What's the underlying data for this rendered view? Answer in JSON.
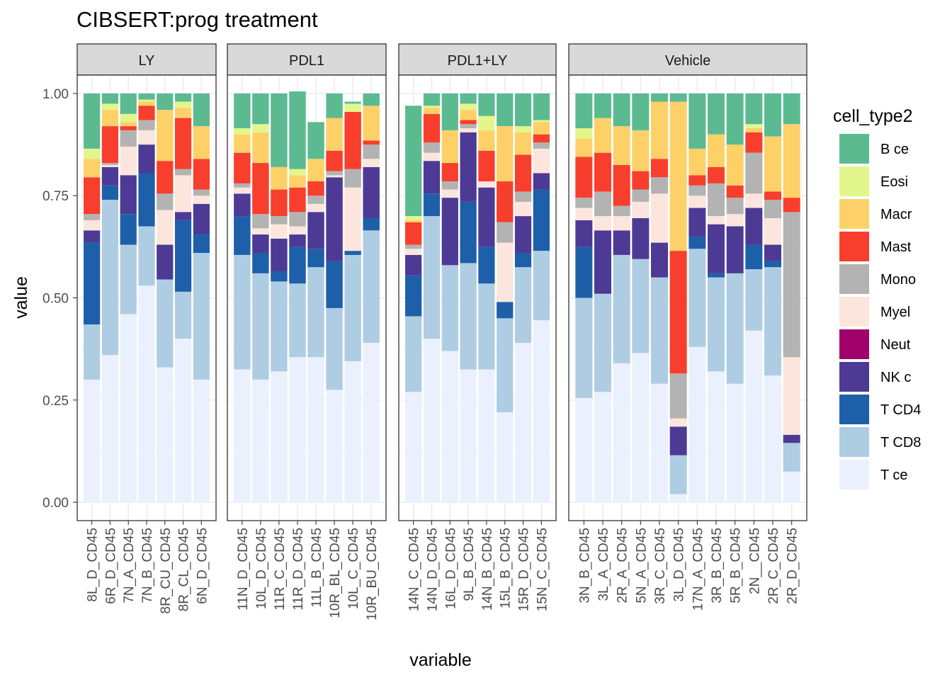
{
  "chart_data": {
    "type": "bar",
    "stacked": true,
    "faceted": true,
    "title": "CIBSERT:prog treatment",
    "xlabel": "variable",
    "ylabel": "value",
    "ylim": [
      -0.045,
      1.045
    ],
    "yticks": [
      0,
      0.25,
      0.5,
      0.75,
      1.0
    ],
    "ytick_labels": [
      "0.00",
      "0.25",
      "0.50",
      "0.75",
      "1.00"
    ],
    "legend": {
      "title": "cell_type2",
      "position": "right",
      "entries": [
        {
          "label": "B ce",
          "color": "#5cba91"
        },
        {
          "label": "Eosi",
          "color": "#e3f68b"
        },
        {
          "label": "Macr",
          "color": "#fdd168"
        },
        {
          "label": "Mast",
          "color": "#f83e2c"
        },
        {
          "label": "Mono",
          "color": "#b3b3b3"
        },
        {
          "label": "Myel",
          "color": "#fbe5dc"
        },
        {
          "label": "Neut",
          "color": "#a0006a"
        },
        {
          "label": "NK c",
          "color": "#4d3a94"
        },
        {
          "label": "T CD4",
          "color": "#1e5faa"
        },
        {
          "label": "T CD8",
          "color": "#afcde2"
        },
        {
          "label": "T ce",
          "color": "#eaf0fd"
        }
      ]
    },
    "stack_order_bottom_to_top": [
      "T ce",
      "T CD8",
      "T CD4",
      "NK c",
      "Neut",
      "Myel",
      "Mono",
      "Mast",
      "Macr",
      "Eosi",
      "B ce"
    ],
    "facets": [
      {
        "label": "LY",
        "bars": [
          {
            "name": "8L_D_CD45",
            "values": {
              "T ce": 0.3,
              "T CD8": 0.135,
              "T CD4": 0.2,
              "NK c": 0.03,
              "Neut": 0,
              "Myel": 0.025,
              "Mono": 0.015,
              "Mast": 0.09,
              "Macr": 0.045,
              "Eosi": 0.025,
              "B ce": 0.135
            }
          },
          {
            "name": "6R_D_CD45",
            "values": {
              "T ce": 0.36,
              "T CD8": 0.38,
              "T CD4": 0.035,
              "NK c": 0.045,
              "Neut": 0,
              "Myel": 0.005,
              "Mono": 0.005,
              "Mast": 0.09,
              "Macr": 0.04,
              "Eosi": 0.015,
              "B ce": 0.025
            }
          },
          {
            "name": "7N_A_CD45",
            "values": {
              "T ce": 0.46,
              "T CD8": 0.17,
              "T CD4": 0.075,
              "NK c": 0.095,
              "Neut": 0,
              "Myel": 0.07,
              "Mono": 0.04,
              "Mast": 0.01,
              "Macr": 0.01,
              "Eosi": 0.02,
              "B ce": 0.05
            }
          },
          {
            "name": "7N_B_CD45",
            "values": {
              "T ce": 0.53,
              "T CD8": 0.145,
              "T CD4": 0.13,
              "NK c": 0.07,
              "Neut": 0,
              "Myel": 0.035,
              "Mono": 0.025,
              "Mast": 0.035,
              "Macr": 0.01,
              "Eosi": 0.005,
              "B ce": 0.015
            }
          },
          {
            "name": "8R_CU_CD45",
            "values": {
              "T ce": 0.33,
              "T CD8": 0.215,
              "T CD4": 0,
              "NK c": 0.085,
              "Neut": 0,
              "Myel": 0.085,
              "Mono": 0.04,
              "Mast": 0.08,
              "Macr": 0.125,
              "Eosi": 0,
              "B ce": 0.04
            }
          },
          {
            "name": "8R_CL_CD45",
            "values": {
              "T ce": 0.4,
              "T CD8": 0.115,
              "T CD4": 0.175,
              "NK c": 0.02,
              "Neut": 0,
              "Myel": 0.09,
              "Mono": 0.015,
              "Mast": 0.125,
              "Macr": 0.025,
              "Eosi": 0.015,
              "B ce": 0.02
            }
          },
          {
            "name": "6N_D_CD45",
            "values": {
              "T ce": 0.3,
              "T CD8": 0.31,
              "T CD4": 0.045,
              "NK c": 0.075,
              "Neut": 0,
              "Myel": 0.02,
              "Mono": 0.015,
              "Mast": 0.075,
              "Macr": 0.08,
              "Eosi": 0,
              "B ce": 0.08
            }
          }
        ]
      },
      {
        "label": "PDL1",
        "bars": [
          {
            "name": "11N_D_CD45",
            "values": {
              "T ce": 0.325,
              "T CD8": 0.28,
              "T CD4": 0.095,
              "NK c": 0.055,
              "Neut": 0,
              "Myel": 0.015,
              "Mono": 0.01,
              "Mast": 0.075,
              "Macr": 0.045,
              "Eosi": 0.015,
              "B ce": 0.085
            }
          },
          {
            "name": "10L_D_CD45",
            "values": {
              "T ce": 0.3,
              "T CD8": 0.26,
              "T CD4": 0.05,
              "NK c": 0.045,
              "Neut": 0,
              "Myel": 0.015,
              "Mono": 0.035,
              "Mast": 0.125,
              "Macr": 0.075,
              "Eosi": 0.02,
              "B ce": 0.075
            }
          },
          {
            "name": "11R_C_CD45",
            "values": {
              "T ce": 0.32,
              "T CD8": 0.22,
              "T CD4": 0.025,
              "NK c": 0.08,
              "Neut": 0,
              "Myel": 0.035,
              "Mono": 0.02,
              "Mast": 0.065,
              "Macr": 0.055,
              "Eosi": 0,
              "B ce": 0.18
            }
          },
          {
            "name": "11R_D_CD45",
            "values": {
              "T ce": 0.355,
              "T CD8": 0.18,
              "T CD4": 0.09,
              "NK c": 0.03,
              "Neut": 0,
              "Myel": 0.02,
              "Mono": 0.035,
              "Mast": 0.06,
              "Macr": 0.03,
              "Eosi": 0.015,
              "B ce": 0.19
            }
          },
          {
            "name": "11L_B_CD45",
            "values": {
              "T ce": 0.355,
              "T CD8": 0.22,
              "T CD4": 0.045,
              "NK c": 0.09,
              "Neut": 0,
              "Myel": 0.02,
              "Mono": 0.02,
              "Mast": 0.035,
              "Macr": 0.055,
              "Eosi": 0,
              "B ce": 0.09
            }
          },
          {
            "name": "10R_BL_CD45",
            "values": {
              "T ce": 0.275,
              "T CD8": 0.2,
              "T CD4": 0.115,
              "NK c": 0.205,
              "Neut": 0,
              "Myel": 0.005,
              "Mono": 0.01,
              "Mast": 0.05,
              "Macr": 0.08,
              "Eosi": 0,
              "B ce": 0.06
            }
          },
          {
            "name": "10L_C_CD45",
            "values": {
              "T ce": 0.345,
              "T CD8": 0.26,
              "T CD4": 0.01,
              "NK c": 0,
              "Neut": 0,
              "Myel": 0.155,
              "Mono": 0.045,
              "Mast": 0.14,
              "Macr": 0,
              "Eosi": 0.02,
              "B ce": 0.005
            }
          },
          {
            "name": "10R_BU_CD45",
            "values": {
              "T ce": 0.39,
              "T CD8": 0.275,
              "T CD4": 0.03,
              "NK c": 0.125,
              "Neut": 0,
              "Myel": 0.02,
              "Mono": 0.035,
              "Mast": 0.01,
              "Macr": 0.085,
              "Eosi": 0,
              "B ce": 0.03
            }
          }
        ]
      },
      {
        "label": "PDL1+LY",
        "bars": [
          {
            "name": "14N_C_CD45",
            "values": {
              "T ce": 0.27,
              "T CD8": 0.185,
              "T CD4": 0.1,
              "NK c": 0.05,
              "Neut": 0,
              "Myel": 0.015,
              "Mono": 0.01,
              "Mast": 0.055,
              "Macr": 0.005,
              "Eosi": 0.01,
              "B ce": 0.27
            }
          },
          {
            "name": "14N_D_CD45",
            "values": {
              "T ce": 0.4,
              "T CD8": 0.3,
              "T CD4": 0.055,
              "NK c": 0.08,
              "Neut": 0,
              "Myel": 0.02,
              "Mono": 0.025,
              "Mast": 0.07,
              "Macr": 0.015,
              "Eosi": 0.005,
              "B ce": 0.03
            }
          },
          {
            "name": "16L_D_CD45",
            "values": {
              "T ce": 0.37,
              "T CD8": 0.21,
              "T CD4": 0,
              "NK c": 0.165,
              "Neut": 0,
              "Myel": 0.02,
              "Mono": 0.02,
              "Mast": 0.045,
              "Macr": 0.08,
              "Eosi": 0,
              "B ce": 0.09
            }
          },
          {
            "name": "9L_B_CD45",
            "values": {
              "T ce": 0.325,
              "T CD8": 0.26,
              "T CD4": 0.15,
              "NK c": 0.17,
              "Neut": 0,
              "Myel": 0.01,
              "Mono": 0.01,
              "Mast": 0.01,
              "Macr": 0.025,
              "Eosi": 0.015,
              "B ce": 0.025
            }
          },
          {
            "name": "14N_B_CD45",
            "values": {
              "T ce": 0.325,
              "T CD8": 0.21,
              "T CD4": 0.09,
              "NK c": 0.145,
              "Neut": 0,
              "Myel": 0.015,
              "Mono": 0,
              "Mast": 0.075,
              "Macr": 0.05,
              "Eosi": 0.035,
              "B ce": 0.055
            }
          },
          {
            "name": "15L_B_CD45",
            "values": {
              "T ce": 0.22,
              "T CD8": 0.23,
              "T CD4": 0.04,
              "NK c": 0,
              "Neut": 0,
              "Myel": 0.145,
              "Mono": 0.05,
              "Mast": 0.1,
              "Macr": 0.135,
              "Eosi": 0,
              "B ce": 0.08
            }
          },
          {
            "name": "15R_D_CD45",
            "values": {
              "T ce": 0.39,
              "T CD8": 0.185,
              "T CD4": 0.035,
              "NK c": 0.09,
              "Neut": 0,
              "Myel": 0.035,
              "Mono": 0.025,
              "Mast": 0.09,
              "Macr": 0.055,
              "Eosi": 0.015,
              "B ce": 0.08
            }
          },
          {
            "name": "15N_C_CD45",
            "values": {
              "T ce": 0.445,
              "T CD8": 0.17,
              "T CD4": 0.15,
              "NK c": 0.04,
              "Neut": 0,
              "Myel": 0.06,
              "Mono": 0.015,
              "Mast": 0.02,
              "Macr": 0.03,
              "Eosi": 0.005,
              "B ce": 0.065
            }
          }
        ]
      },
      {
        "label": "Vehicle",
        "bars": [
          {
            "name": "3N_B_CD45",
            "values": {
              "T ce": 0.255,
              "T CD8": 0.245,
              "T CD4": 0.125,
              "NK c": 0.065,
              "Neut": 0,
              "Myel": 0.03,
              "Mono": 0.025,
              "Mast": 0.1,
              "Macr": 0.045,
              "Eosi": 0.025,
              "B ce": 0.085
            }
          },
          {
            "name": "3L_A_CD45",
            "values": {
              "T ce": 0.27,
              "T CD8": 0.24,
              "T CD4": 0,
              "NK c": 0.155,
              "Neut": 0,
              "Myel": 0.035,
              "Mono": 0.06,
              "Mast": 0.095,
              "Macr": 0.085,
              "Eosi": 0,
              "B ce": 0.06
            }
          },
          {
            "name": "2R_A_CD45",
            "values": {
              "T ce": 0.34,
              "T CD8": 0.265,
              "T CD4": 0,
              "NK c": 0.06,
              "Neut": 0,
              "Myel": 0.035,
              "Mono": 0.025,
              "Mast": 0.1,
              "Macr": 0.095,
              "Eosi": 0,
              "B ce": 0.08
            }
          },
          {
            "name": "5N_A_CD45",
            "values": {
              "T ce": 0.365,
              "T CD8": 0.23,
              "T CD4": 0,
              "NK c": 0.1,
              "Neut": 0,
              "Myel": 0.04,
              "Mono": 0.03,
              "Mast": 0.045,
              "Macr": 0.1,
              "Eosi": 0,
              "B ce": 0.09
            }
          },
          {
            "name": "3R_C_CD45",
            "values": {
              "T ce": 0.29,
              "T CD8": 0.26,
              "T CD4": 0,
              "NK c": 0.085,
              "Neut": 0,
              "Myel": 0.12,
              "Mono": 0.04,
              "Mast": 0.045,
              "Macr": 0.14,
              "Eosi": 0,
              "B ce": 0.02
            }
          },
          {
            "name": "3L_D_CD45",
            "values": {
              "T ce": 0.02,
              "T CD8": 0.095,
              "T CD4": 0,
              "NK c": 0.07,
              "Neut": 0,
              "Myel": 0.02,
              "Mono": 0.11,
              "Mast": 0.3,
              "Macr": 0.365,
              "Eosi": 0,
              "B ce": 0.02
            }
          },
          {
            "name": "17N_A_CD45",
            "values": {
              "T ce": 0.38,
              "T CD8": 0.24,
              "T CD4": 0.03,
              "NK c": 0.07,
              "Neut": 0,
              "Myel": 0.03,
              "Mono": 0.025,
              "Mast": 0.025,
              "Macr": 0.065,
              "Eosi": 0,
              "B ce": 0.135
            }
          },
          {
            "name": "3R_B_CD45",
            "values": {
              "T ce": 0.32,
              "T CD8": 0.23,
              "T CD4": 0.01,
              "NK c": 0.12,
              "Neut": 0,
              "Myel": 0.02,
              "Mono": 0.08,
              "Mast": 0.04,
              "Macr": 0.08,
              "Eosi": 0,
              "B ce": 0.1
            }
          },
          {
            "name": "5R_B_CD45",
            "values": {
              "T ce": 0.29,
              "T CD8": 0.27,
              "T CD4": 0,
              "NK c": 0.115,
              "Neut": 0,
              "Myel": 0.03,
              "Mono": 0.04,
              "Mast": 0.03,
              "Macr": 0.1,
              "Eosi": 0,
              "B ce": 0.125
            }
          },
          {
            "name": "2N__CD45",
            "values": {
              "T ce": 0.42,
              "T CD8": 0.15,
              "T CD4": 0.06,
              "NK c": 0.09,
              "Neut": 0,
              "Myel": 0.035,
              "Mono": 0.1,
              "Mast": 0.05,
              "Macr": 0.01,
              "Eosi": 0.01,
              "B ce": 0.075
            }
          },
          {
            "name": "2R_C_CD45",
            "values": {
              "T ce": 0.31,
              "T CD8": 0.265,
              "T CD4": 0.015,
              "NK c": 0.04,
              "Neut": 0,
              "Myel": 0.065,
              "Mono": 0.045,
              "Mast": 0.02,
              "Macr": 0.135,
              "Eosi": 0,
              "B ce": 0.105
            }
          },
          {
            "name": "2R_D_CD45",
            "values": {
              "T ce": 0.075,
              "T CD8": 0.07,
              "T CD4": 0,
              "NK c": 0.02,
              "Neut": 0,
              "Myel": 0.19,
              "Mono": 0.355,
              "Mast": 0.035,
              "Macr": 0.18,
              "Eosi": 0,
              "B ce": 0.075
            }
          }
        ]
      }
    ]
  }
}
